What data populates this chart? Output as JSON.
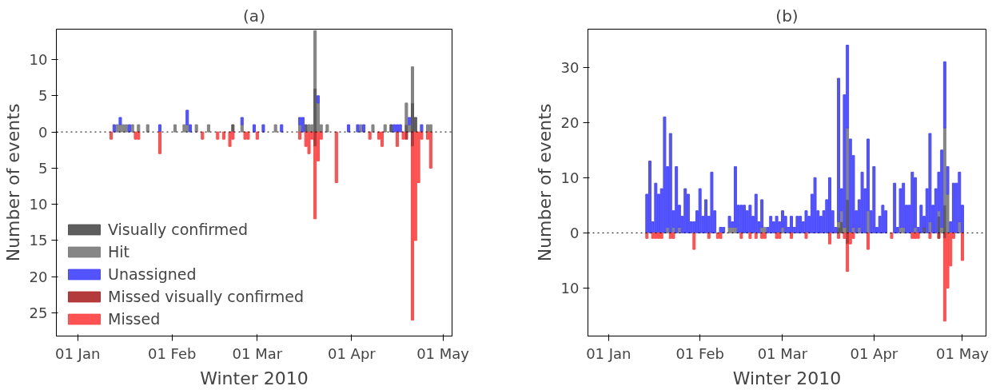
{
  "chart_data": [
    {
      "type": "bar",
      "title": "(a)",
      "xlabel": "Winter 2010",
      "ylabel": "Number of events",
      "stacked": true,
      "legend": "bottom left",
      "xlim": [
        "2009-12-25",
        "2010-05-04"
      ],
      "ylim": [
        -28.2,
        14.2
      ],
      "xticks": [
        {
          "value": "2010-01-01",
          "label": "01 Jan"
        },
        {
          "value": "2010-02-01",
          "label": "01 Feb"
        },
        {
          "value": "2010-03-01",
          "label": "01 Mar"
        },
        {
          "value": "2010-04-01",
          "label": "01 Apr"
        },
        {
          "value": "2010-05-01",
          "label": "01 May"
        }
      ],
      "yticks": [
        {
          "value": 10,
          "label": "10"
        },
        {
          "value": 5,
          "label": "5"
        },
        {
          "value": 0,
          "label": "0"
        },
        {
          "value": -5,
          "label": "5"
        },
        {
          "value": -10,
          "label": "10"
        },
        {
          "value": -15,
          "label": "15"
        },
        {
          "value": -20,
          "label": "20"
        },
        {
          "value": -25,
          "label": "25"
        }
      ],
      "ref_lines": [
        {
          "axis": "y",
          "value": 0,
          "color": "#000000",
          "line_style": "dotted"
        }
      ],
      "x": [
        "2010-01-12",
        "2010-01-13",
        "2010-01-14",
        "2010-01-15",
        "2010-01-16",
        "2010-01-17",
        "2010-01-18",
        "2010-01-19",
        "2010-01-20",
        "2010-01-21",
        "2010-01-24",
        "2010-01-28",
        "2010-02-02",
        "2010-02-05",
        "2010-02-06",
        "2010-02-07",
        "2010-02-09",
        "2010-02-11",
        "2010-02-13",
        "2010-02-16",
        "2010-02-18",
        "2010-02-20",
        "2010-02-21",
        "2010-02-24",
        "2010-02-25",
        "2010-02-26",
        "2010-02-28",
        "2010-03-01",
        "2010-03-03",
        "2010-03-07",
        "2010-03-09",
        "2010-03-15",
        "2010-03-16",
        "2010-03-17",
        "2010-03-18",
        "2010-03-19",
        "2010-03-20",
        "2010-03-21",
        "2010-03-22",
        "2010-03-24",
        "2010-03-27",
        "2010-03-31",
        "2010-04-03",
        "2010-04-04",
        "2010-04-05",
        "2010-04-07",
        "2010-04-08",
        "2010-04-10",
        "2010-04-11",
        "2010-04-12",
        "2010-04-14",
        "2010-04-15",
        "2010-04-16",
        "2010-04-17",
        "2010-04-18",
        "2010-04-19",
        "2010-04-20",
        "2010-04-21",
        "2010-04-22",
        "2010-04-23",
        "2010-04-24",
        "2010-04-26",
        "2010-04-27"
      ],
      "series": [
        {
          "name": "Visually confirmed",
          "color": "#555555",
          "values": [
            null,
            null,
            null,
            null,
            null,
            null,
            null,
            null,
            null,
            null,
            null,
            null,
            null,
            null,
            null,
            null,
            null,
            null,
            null,
            null,
            null,
            null,
            1,
            null,
            null,
            null,
            null,
            null,
            null,
            null,
            null,
            null,
            null,
            1,
            null,
            null,
            6,
            null,
            null,
            null,
            null,
            null,
            null,
            null,
            null,
            null,
            null,
            null,
            null,
            null,
            1,
            null,
            null,
            null,
            null,
            1,
            null,
            4,
            2,
            null,
            null,
            null,
            null
          ]
        },
        {
          "name": "Hit",
          "color": "#808080",
          "values": [
            null,
            null,
            1,
            1,
            1,
            1,
            null,
            1,
            null,
            1,
            1,
            null,
            1,
            1,
            1,
            null,
            1,
            null,
            1,
            null,
            null,
            null,
            null,
            1,
            null,
            null,
            null,
            null,
            null,
            1,
            null,
            1,
            null,
            null,
            1,
            1,
            8,
            4,
            1,
            1,
            null,
            null,
            null,
            1,
            null,
            null,
            1,
            null,
            null,
            1,
            null,
            null,
            null,
            null,
            null,
            3,
            1,
            5,
            null,
            null,
            null,
            1,
            1
          ]
        },
        {
          "name": "Unassigned",
          "color": "#4a4aff",
          "values": [
            null,
            1,
            null,
            1,
            null,
            null,
            1,
            null,
            null,
            null,
            null,
            1,
            null,
            null,
            2,
            1,
            null,
            null,
            null,
            null,
            null,
            null,
            null,
            1,
            null,
            null,
            1,
            null,
            1,
            null,
            1,
            1,
            2,
            null,
            null,
            null,
            null,
            1,
            null,
            null,
            null,
            1,
            1,
            null,
            1,
            null,
            null,
            null,
            null,
            null,
            null,
            1,
            1,
            1,
            null,
            null,
            1,
            null,
            null,
            null,
            1,
            null,
            null
          ]
        },
        {
          "name": "Missed visually confirmed",
          "color": "#b03030",
          "values": [
            null,
            null,
            null,
            null,
            null,
            null,
            null,
            null,
            null,
            null,
            null,
            null,
            null,
            null,
            null,
            null,
            null,
            null,
            null,
            null,
            null,
            null,
            null,
            null,
            null,
            null,
            null,
            null,
            null,
            null,
            null,
            null,
            null,
            null,
            null,
            null,
            -2,
            null,
            null,
            null,
            null,
            null,
            null,
            null,
            null,
            null,
            null,
            null,
            null,
            null,
            null,
            null,
            null,
            null,
            null,
            -1,
            null,
            -2,
            null,
            null,
            null,
            null,
            null
          ]
        },
        {
          "name": "Missed",
          "color": "#ff4a4a",
          "values": [
            -1,
            null,
            null,
            null,
            null,
            null,
            null,
            null,
            -1,
            -1,
            null,
            -3,
            null,
            null,
            null,
            null,
            null,
            -1,
            null,
            -1,
            -1,
            -2,
            -1,
            null,
            -1,
            -1,
            null,
            -1,
            null,
            null,
            null,
            -1,
            null,
            -2,
            -3,
            -1,
            -10,
            -4,
            -1,
            null,
            -7,
            null,
            null,
            null,
            null,
            -1,
            null,
            -1,
            -2,
            null,
            null,
            null,
            -2,
            null,
            -1,
            null,
            null,
            -24,
            -15,
            -7,
            -1,
            -1,
            -5
          ]
        }
      ]
    },
    {
      "type": "bar",
      "title": "(b)",
      "xlabel": "Winter 2010",
      "ylabel": "Number of events",
      "stacked": true,
      "xlim": [
        "2009-12-25",
        "2010-05-09"
      ],
      "ylim": [
        -18.7,
        36.9
      ],
      "xticks": [
        {
          "value": "2010-01-01",
          "label": "01 Jan"
        },
        {
          "value": "2010-02-01",
          "label": "01 Feb"
        },
        {
          "value": "2010-03-01",
          "label": "01 Mar"
        },
        {
          "value": "2010-04-01",
          "label": "01 Apr"
        },
        {
          "value": "2010-05-01",
          "label": "01 May"
        }
      ],
      "yticks": [
        {
          "value": 30,
          "label": "30"
        },
        {
          "value": 20,
          "label": "20"
        },
        {
          "value": 10,
          "label": "10"
        },
        {
          "value": 0,
          "label": "0"
        },
        {
          "value": -10,
          "label": "10"
        }
      ],
      "ref_lines": [
        {
          "axis": "y",
          "value": 0,
          "color": "#000000",
          "line_style": "dotted"
        }
      ],
      "x": [
        "2010-01-14",
        "2010-01-15",
        "2010-01-16",
        "2010-01-17",
        "2010-01-18",
        "2010-01-19",
        "2010-01-20",
        "2010-01-21",
        "2010-01-22",
        "2010-01-23",
        "2010-01-24",
        "2010-01-25",
        "2010-01-26",
        "2010-01-27",
        "2010-01-28",
        "2010-01-29",
        "2010-01-30",
        "2010-01-31",
        "2010-02-01",
        "2010-02-02",
        "2010-02-03",
        "2010-02-04",
        "2010-02-05",
        "2010-02-06",
        "2010-02-07",
        "2010-02-08",
        "2010-02-09",
        "2010-02-11",
        "2010-02-12",
        "2010-02-13",
        "2010-02-14",
        "2010-02-15",
        "2010-02-16",
        "2010-02-17",
        "2010-02-18",
        "2010-02-19",
        "2010-02-20",
        "2010-02-21",
        "2010-02-22",
        "2010-02-23",
        "2010-02-24",
        "2010-02-25",
        "2010-02-26",
        "2010-02-27",
        "2010-02-28",
        "2010-03-01",
        "2010-03-02",
        "2010-03-03",
        "2010-03-04",
        "2010-03-05",
        "2010-03-06",
        "2010-03-07",
        "2010-03-08",
        "2010-03-09",
        "2010-03-10",
        "2010-03-11",
        "2010-03-12",
        "2010-03-13",
        "2010-03-14",
        "2010-03-15",
        "2010-03-16",
        "2010-03-17",
        "2010-03-18",
        "2010-03-19",
        "2010-03-20",
        "2010-03-21",
        "2010-03-22",
        "2010-03-23",
        "2010-03-24",
        "2010-03-25",
        "2010-03-26",
        "2010-03-27",
        "2010-03-28",
        "2010-03-29",
        "2010-03-30",
        "2010-03-31",
        "2010-04-01",
        "2010-04-02",
        "2010-04-03",
        "2010-04-04",
        "2010-04-05",
        "2010-04-07",
        "2010-04-08",
        "2010-04-09",
        "2010-04-10",
        "2010-04-11",
        "2010-04-12",
        "2010-04-13",
        "2010-04-14",
        "2010-04-15",
        "2010-04-16",
        "2010-04-17",
        "2010-04-18",
        "2010-04-19",
        "2010-04-20",
        "2010-04-21",
        "2010-04-22",
        "2010-04-23",
        "2010-04-24",
        "2010-04-25",
        "2010-04-26",
        "2010-04-27",
        "2010-04-28",
        "2010-04-29",
        "2010-04-30",
        "2010-05-01"
      ],
      "series": [
        {
          "color": "#555555",
          "values": [
            null,
            null,
            null,
            null,
            null,
            null,
            null,
            null,
            null,
            null,
            null,
            null,
            null,
            null,
            null,
            null,
            null,
            null,
            null,
            null,
            null,
            null,
            null,
            null,
            null,
            null,
            null,
            null,
            null,
            null,
            null,
            null,
            null,
            null,
            null,
            null,
            null,
            null,
            null,
            null,
            null,
            null,
            null,
            null,
            null,
            null,
            null,
            null,
            null,
            null,
            null,
            null,
            null,
            null,
            null,
            null,
            null,
            null,
            null,
            null,
            null,
            null,
            null,
            null,
            1,
            2,
            null,
            6,
            null,
            null,
            null,
            null,
            null,
            null,
            null,
            null,
            null,
            null,
            null,
            null,
            null,
            null,
            null,
            null,
            null,
            null,
            null,
            null,
            null,
            null,
            null,
            null,
            1,
            null,
            null,
            null,
            null,
            3,
            null,
            5,
            null,
            null,
            null,
            null,
            null,
            null
          ]
        },
        {
          "color": "#808080",
          "values": [
            null,
            null,
            null,
            null,
            null,
            null,
            null,
            1,
            null,
            1,
            null,
            1,
            null,
            null,
            null,
            null,
            null,
            null,
            null,
            null,
            null,
            null,
            null,
            null,
            null,
            null,
            null,
            1,
            1,
            1,
            null,
            null,
            null,
            null,
            null,
            null,
            null,
            null,
            1,
            1,
            null,
            null,
            null,
            null,
            null,
            1,
            null,
            null,
            null,
            null,
            null,
            null,
            null,
            null,
            null,
            null,
            null,
            null,
            null,
            null,
            null,
            null,
            null,
            null,
            1,
            2,
            1,
            13,
            null,
            1,
            null,
            1,
            null,
            null,
            4,
            null,
            null,
            null,
            null,
            null,
            null,
            null,
            null,
            null,
            1,
            1,
            null,
            null,
            null,
            1,
            null,
            null,
            null,
            null,
            2,
            null,
            null,
            1,
            1,
            14,
            7,
            null,
            null,
            null,
            2,
            null
          ]
        },
        {
          "color": "#4a4aff",
          "values": [
            7,
            13,
            2,
            9,
            7,
            8,
            21,
            11,
            18,
            3,
            12,
            4,
            3,
            8,
            7,
            2,
            2,
            4,
            8,
            3,
            6,
            3,
            11,
            4,
            null,
            1,
            1,
            2,
            1,
            11,
            5,
            5,
            5,
            4,
            5,
            3,
            7,
            2,
            5,
            null,
            1,
            3,
            2,
            3,
            2,
            3,
            3,
            1,
            3,
            1,
            3,
            3,
            2,
            4,
            3,
            7,
            10,
            4,
            3,
            4,
            6,
            10,
            4,
            1,
            26,
            4,
            24,
            15,
            17,
            13,
            4,
            5,
            11,
            8,
            13,
            4,
            12,
            1,
            3,
            5,
            4,
            null,
            9,
            1,
            7,
            8,
            5,
            5,
            11,
            9,
            1,
            5,
            2,
            8,
            16,
            5,
            8,
            7,
            14,
            12,
            5,
            2,
            9,
            9,
            9,
            5
          ]
        },
        {
          "color": "#b03030",
          "values": [
            null,
            null,
            null,
            null,
            null,
            null,
            null,
            null,
            null,
            null,
            null,
            null,
            null,
            null,
            null,
            null,
            null,
            null,
            null,
            null,
            null,
            null,
            null,
            null,
            null,
            null,
            null,
            null,
            null,
            null,
            null,
            null,
            null,
            null,
            null,
            null,
            null,
            null,
            null,
            null,
            null,
            null,
            null,
            null,
            null,
            null,
            null,
            null,
            null,
            null,
            null,
            null,
            null,
            null,
            null,
            null,
            null,
            null,
            null,
            null,
            null,
            null,
            null,
            null,
            null,
            null,
            null,
            -2,
            null,
            null,
            null,
            null,
            null,
            null,
            null,
            null,
            null,
            null,
            null,
            null,
            null,
            null,
            null,
            null,
            null,
            null,
            null,
            null,
            null,
            null,
            null,
            null,
            null,
            null,
            null,
            null,
            null,
            -1,
            null,
            -1,
            null,
            null,
            null,
            null,
            null,
            null
          ]
        },
        {
          "color": "#ff4a4a",
          "values": [
            -1,
            null,
            -1,
            -1,
            -1,
            -1,
            null,
            null,
            -1,
            -1,
            null,
            null,
            null,
            null,
            null,
            null,
            -3,
            null,
            null,
            null,
            null,
            -1,
            null,
            null,
            -1,
            -1,
            null,
            null,
            null,
            null,
            null,
            -1,
            null,
            null,
            -1,
            null,
            -1,
            null,
            -1,
            -1,
            null,
            null,
            null,
            -1,
            -1,
            null,
            null,
            null,
            -1,
            null,
            null,
            null,
            null,
            -1,
            null,
            null,
            null,
            null,
            null,
            null,
            null,
            -2,
            null,
            null,
            -1,
            null,
            -1,
            -5,
            -2,
            -1,
            null,
            null,
            null,
            null,
            -3,
            null,
            null,
            null,
            null,
            null,
            null,
            -1,
            null,
            null,
            null,
            null,
            null,
            null,
            -1,
            -1,
            -1,
            null,
            null,
            null,
            -1,
            null,
            null,
            null,
            null,
            -15,
            -10,
            -6,
            -1,
            null,
            null,
            -5
          ]
        }
      ]
    }
  ]
}
